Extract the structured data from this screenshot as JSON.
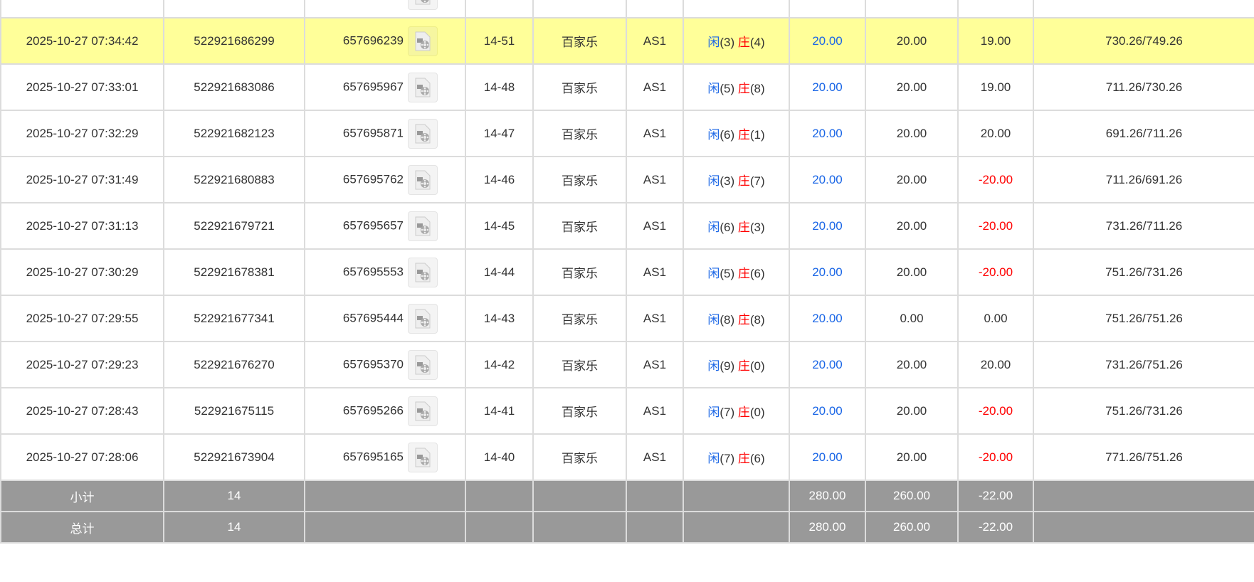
{
  "colors": {
    "highlight": "#ffff99",
    "blue": "#1a66e6",
    "red": "#ff0000",
    "summary_bg": "#999999"
  },
  "player_label": "闲",
  "banker_label": "庄",
  "rows": [
    {
      "time": "2025-10-27 07:34:42",
      "bet_id": "522921686299",
      "round_id": "657696239",
      "shoe": "14-51",
      "game": "百家乐",
      "table": "AS1",
      "player": "(3)",
      "banker": "(4)",
      "bet": "20.00",
      "valid": "20.00",
      "win": "19.00",
      "win_neg": false,
      "balance": "730.26/749.26",
      "highlight": true
    },
    {
      "time": "2025-10-27 07:33:01",
      "bet_id": "522921683086",
      "round_id": "657695967",
      "shoe": "14-48",
      "game": "百家乐",
      "table": "AS1",
      "player": "(5)",
      "banker": "(8)",
      "bet": "20.00",
      "valid": "20.00",
      "win": "19.00",
      "win_neg": false,
      "balance": "711.26/730.26"
    },
    {
      "time": "2025-10-27 07:32:29",
      "bet_id": "522921682123",
      "round_id": "657695871",
      "shoe": "14-47",
      "game": "百家乐",
      "table": "AS1",
      "player": "(6)",
      "banker": "(1)",
      "bet": "20.00",
      "valid": "20.00",
      "win": "20.00",
      "win_neg": false,
      "balance": "691.26/711.26"
    },
    {
      "time": "2025-10-27 07:31:49",
      "bet_id": "522921680883",
      "round_id": "657695762",
      "shoe": "14-46",
      "game": "百家乐",
      "table": "AS1",
      "player": "(3)",
      "banker": "(7)",
      "bet": "20.00",
      "valid": "20.00",
      "win": "-20.00",
      "win_neg": true,
      "balance": "711.26/691.26"
    },
    {
      "time": "2025-10-27 07:31:13",
      "bet_id": "522921679721",
      "round_id": "657695657",
      "shoe": "14-45",
      "game": "百家乐",
      "table": "AS1",
      "player": "(6)",
      "banker": "(3)",
      "bet": "20.00",
      "valid": "20.00",
      "win": "-20.00",
      "win_neg": true,
      "balance": "731.26/711.26"
    },
    {
      "time": "2025-10-27 07:30:29",
      "bet_id": "522921678381",
      "round_id": "657695553",
      "shoe": "14-44",
      "game": "百家乐",
      "table": "AS1",
      "player": "(5)",
      "banker": "(6)",
      "bet": "20.00",
      "valid": "20.00",
      "win": "-20.00",
      "win_neg": true,
      "balance": "751.26/731.26"
    },
    {
      "time": "2025-10-27 07:29:55",
      "bet_id": "522921677341",
      "round_id": "657695444",
      "shoe": "14-43",
      "game": "百家乐",
      "table": "AS1",
      "player": "(8)",
      "banker": "(8)",
      "bet": "20.00",
      "valid": "0.00",
      "win": "0.00",
      "win_neg": false,
      "balance": "751.26/751.26"
    },
    {
      "time": "2025-10-27 07:29:23",
      "bet_id": "522921676270",
      "round_id": "657695370",
      "shoe": "14-42",
      "game": "百家乐",
      "table": "AS1",
      "player": "(9)",
      "banker": "(0)",
      "bet": "20.00",
      "valid": "20.00",
      "win": "20.00",
      "win_neg": false,
      "balance": "731.26/751.26"
    },
    {
      "time": "2025-10-27 07:28:43",
      "bet_id": "522921675115",
      "round_id": "657695266",
      "shoe": "14-41",
      "game": "百家乐",
      "table": "AS1",
      "player": "(7)",
      "banker": "(0)",
      "bet": "20.00",
      "valid": "20.00",
      "win": "-20.00",
      "win_neg": true,
      "balance": "751.26/731.26"
    },
    {
      "time": "2025-10-27 07:28:06",
      "bet_id": "522921673904",
      "round_id": "657695165",
      "shoe": "14-40",
      "game": "百家乐",
      "table": "AS1",
      "player": "(7)",
      "banker": "(6)",
      "bet": "20.00",
      "valid": "20.00",
      "win": "-20.00",
      "win_neg": true,
      "balance": "771.26/751.26"
    }
  ],
  "summary": [
    {
      "label": "小计",
      "count": "14",
      "bet": "280.00",
      "valid": "260.00",
      "win": "-22.00"
    },
    {
      "label": "总计",
      "count": "14",
      "bet": "280.00",
      "valid": "260.00",
      "win": "-22.00"
    }
  ]
}
